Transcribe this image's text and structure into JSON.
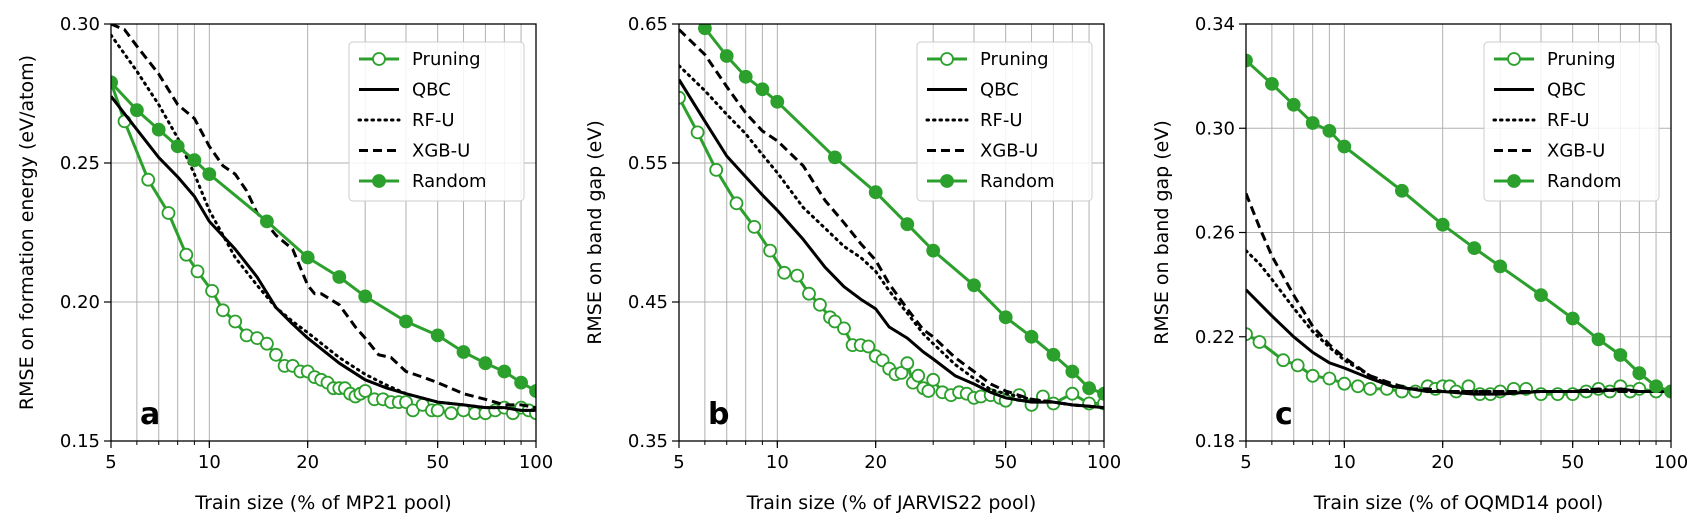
{
  "figure": {
    "colors": {
      "green": "#2ca02c",
      "black": "#000000",
      "grid": "#b0b0b0"
    }
  },
  "chart_data": [
    {
      "type": "line",
      "panel": "a",
      "xlabel": "Train size (% of MP21 pool)",
      "ylabel": "RMSE on formation energy (eV/atom)",
      "xscale": "log",
      "xlim": [
        5,
        100
      ],
      "ylim": [
        0.15,
        0.3
      ],
      "xticks": [
        5,
        10,
        20,
        50,
        100
      ],
      "xtick_labels": [
        "5",
        "10",
        "20",
        "50",
        "100"
      ],
      "yticks": [
        0.15,
        0.2,
        0.25,
        0.3
      ],
      "ytick_labels": [
        "0.15",
        "0.20",
        "0.25",
        "0.30"
      ],
      "grid": true,
      "legend_position": "top-right",
      "series": [
        {
          "name": "Pruning",
          "color": "#2ca02c",
          "style": "solid",
          "marker": "open-circle",
          "x": [
            5,
            5.5,
            6.5,
            7.5,
            8.5,
            9.2,
            10.2,
            11,
            12,
            13,
            14,
            15,
            16,
            17,
            18,
            19,
            20,
            21,
            22,
            23,
            24,
            25,
            26,
            27,
            28,
            29,
            30,
            32,
            34,
            36,
            38,
            40,
            42,
            45,
            48,
            50,
            55,
            60,
            65,
            70,
            75,
            80,
            85,
            90,
            95,
            100
          ],
          "y": [
            0.279,
            0.265,
            0.244,
            0.232,
            0.217,
            0.211,
            0.204,
            0.197,
            0.193,
            0.188,
            0.187,
            0.185,
            0.181,
            0.177,
            0.177,
            0.175,
            0.175,
            0.173,
            0.172,
            0.171,
            0.169,
            0.169,
            0.169,
            0.167,
            0.166,
            0.167,
            0.168,
            0.165,
            0.165,
            0.164,
            0.164,
            0.164,
            0.161,
            0.163,
            0.161,
            0.161,
            0.16,
            0.161,
            0.16,
            0.16,
            0.161,
            0.162,
            0.16,
            0.162,
            0.161,
            0.16
          ]
        },
        {
          "name": "QBC",
          "color": "#000000",
          "style": "solid",
          "marker": "none",
          "x": [
            5,
            6,
            7,
            8,
            9,
            10,
            12,
            14,
            16,
            18,
            20,
            25,
            30,
            35,
            40,
            50,
            60,
            70,
            80,
            90,
            100
          ],
          "y": [
            0.274,
            0.262,
            0.252,
            0.245,
            0.238,
            0.229,
            0.219,
            0.209,
            0.198,
            0.192,
            0.187,
            0.178,
            0.172,
            0.169,
            0.167,
            0.164,
            0.163,
            0.162,
            0.162,
            0.161,
            0.161
          ]
        },
        {
          "name": "RF-U",
          "color": "#000000",
          "style": "dotted",
          "marker": "none",
          "x": [
            5,
            6,
            7,
            8,
            9,
            10,
            12,
            14,
            16,
            18,
            20,
            25,
            30,
            35,
            40,
            50,
            60,
            70,
            80,
            90,
            100
          ],
          "y": [
            0.296,
            0.283,
            0.271,
            0.259,
            0.246,
            0.233,
            0.216,
            0.206,
            0.198,
            0.193,
            0.189,
            0.18,
            0.174,
            0.17,
            0.167,
            0.164,
            0.163,
            0.162,
            0.162,
            0.161,
            0.161
          ]
        },
        {
          "name": "XGB-U",
          "color": "#000000",
          "style": "dashed",
          "marker": "none",
          "x": [
            5,
            5.5,
            6,
            7,
            8,
            9,
            10,
            11,
            12,
            13,
            14,
            15,
            16,
            18,
            20,
            21,
            22,
            25,
            28,
            30,
            33,
            36,
            40,
            45,
            50,
            60,
            70,
            80,
            90,
            100
          ],
          "y": [
            0.3,
            0.298,
            0.292,
            0.282,
            0.271,
            0.266,
            0.256,
            0.249,
            0.246,
            0.24,
            0.232,
            0.228,
            0.224,
            0.219,
            0.206,
            0.203,
            0.203,
            0.199,
            0.191,
            0.187,
            0.181,
            0.18,
            0.175,
            0.173,
            0.171,
            0.167,
            0.165,
            0.163,
            0.163,
            0.162
          ]
        },
        {
          "name": "Random",
          "color": "#2ca02c",
          "style": "solid",
          "marker": "filled-circle",
          "x": [
            5,
            6,
            7,
            8,
            9,
            10,
            15,
            20,
            25,
            30,
            40,
            50,
            60,
            70,
            80,
            90,
            100
          ],
          "y": [
            0.279,
            0.269,
            0.262,
            0.256,
            0.251,
            0.246,
            0.229,
            0.216,
            0.209,
            0.202,
            0.193,
            0.188,
            0.182,
            0.178,
            0.175,
            0.171,
            0.168
          ]
        }
      ]
    },
    {
      "type": "line",
      "panel": "b",
      "xlabel": "Train size (% of JARVIS22 pool)",
      "ylabel": "RMSE on band gap (eV)",
      "xscale": "log",
      "xlim": [
        5,
        100
      ],
      "ylim": [
        0.35,
        0.65
      ],
      "xticks": [
        5,
        10,
        20,
        50,
        100
      ],
      "xtick_labels": [
        "5",
        "10",
        "20",
        "50",
        "100"
      ],
      "yticks": [
        0.35,
        0.45,
        0.55,
        0.65
      ],
      "ytick_labels": [
        "0.35",
        "0.45",
        "0.55",
        "0.65"
      ],
      "grid": true,
      "legend_position": "top-right",
      "series": [
        {
          "name": "Pruning",
          "color": "#2ca02c",
          "style": "solid",
          "marker": "open-circle",
          "x": [
            5,
            5.7,
            6.5,
            7.5,
            8.5,
            9.5,
            10.5,
            11.5,
            12.5,
            13.5,
            14.5,
            15,
            16,
            17,
            18,
            19,
            20,
            21,
            22,
            23,
            24,
            25,
            26,
            27,
            28,
            29,
            30,
            32,
            34,
            36,
            38,
            40,
            42,
            45,
            48,
            50,
            55,
            60,
            65,
            70,
            80,
            90,
            100
          ],
          "y": [
            0.597,
            0.572,
            0.545,
            0.521,
            0.504,
            0.487,
            0.471,
            0.469,
            0.456,
            0.448,
            0.439,
            0.436,
            0.431,
            0.419,
            0.419,
            0.418,
            0.411,
            0.408,
            0.402,
            0.398,
            0.399,
            0.406,
            0.392,
            0.397,
            0.388,
            0.386,
            0.394,
            0.385,
            0.383,
            0.385,
            0.384,
            0.381,
            0.382,
            0.383,
            0.381,
            0.379,
            0.383,
            0.376,
            0.382,
            0.377,
            0.384,
            0.377,
            0.377
          ]
        },
        {
          "name": "QBC",
          "color": "#000000",
          "style": "solid",
          "marker": "none",
          "x": [
            5,
            6,
            7,
            8,
            9,
            10,
            12,
            14,
            16,
            18,
            20,
            22,
            25,
            28,
            30,
            35,
            40,
            45,
            50,
            60,
            70,
            80,
            90,
            100
          ],
          "y": [
            0.61,
            0.58,
            0.555,
            0.54,
            0.527,
            0.516,
            0.495,
            0.475,
            0.461,
            0.452,
            0.445,
            0.432,
            0.424,
            0.414,
            0.409,
            0.397,
            0.391,
            0.385,
            0.381,
            0.378,
            0.378,
            0.376,
            0.375,
            0.374
          ]
        },
        {
          "name": "RF-U",
          "color": "#000000",
          "style": "dotted",
          "marker": "none",
          "x": [
            5,
            6,
            7,
            8,
            9,
            10,
            12,
            14,
            16,
            18,
            20,
            22,
            25,
            28,
            30,
            35,
            40,
            45,
            50,
            60,
            70,
            80,
            90,
            100
          ],
          "y": [
            0.62,
            0.602,
            0.585,
            0.571,
            0.556,
            0.543,
            0.518,
            0.503,
            0.49,
            0.482,
            0.472,
            0.458,
            0.442,
            0.427,
            0.42,
            0.405,
            0.395,
            0.387,
            0.384,
            0.38,
            0.378,
            0.376,
            0.375,
            0.374
          ]
        },
        {
          "name": "XGB-U",
          "color": "#000000",
          "style": "dashed",
          "marker": "none",
          "x": [
            5,
            6,
            7,
            8,
            9,
            10,
            12,
            14,
            16,
            18,
            20,
            22,
            25,
            28,
            30,
            35,
            40,
            45,
            50,
            60,
            70,
            80,
            90,
            100
          ],
          "y": [
            0.646,
            0.628,
            0.605,
            0.586,
            0.573,
            0.566,
            0.548,
            0.523,
            0.507,
            0.492,
            0.48,
            0.463,
            0.445,
            0.43,
            0.425,
            0.41,
            0.4,
            0.391,
            0.386,
            0.38,
            0.378,
            0.376,
            0.375,
            0.374
          ]
        },
        {
          "name": "Random",
          "color": "#2ca02c",
          "style": "solid",
          "marker": "filled-circle",
          "x": [
            5,
            6,
            7,
            8,
            9,
            10,
            15,
            20,
            25,
            30,
            40,
            50,
            60,
            70,
            80,
            90,
            100
          ],
          "y": [
            0.672,
            0.647,
            0.627,
            0.612,
            0.603,
            0.594,
            0.554,
            0.529,
            0.506,
            0.487,
            0.462,
            0.439,
            0.425,
            0.412,
            0.4,
            0.388,
            0.384
          ]
        }
      ]
    },
    {
      "type": "line",
      "panel": "c",
      "xlabel": "Train size (% of OQMD14 pool)",
      "ylabel": "RMSE on band gap (eV)",
      "xscale": "log",
      "xlim": [
        5,
        100
      ],
      "ylim": [
        0.18,
        0.34
      ],
      "xticks": [
        5,
        10,
        20,
        50,
        100
      ],
      "xtick_labels": [
        "5",
        "10",
        "20",
        "50",
        "100"
      ],
      "yticks": [
        0.18,
        0.22,
        0.26,
        0.3,
        0.34
      ],
      "ytick_labels": [
        "0.18",
        "0.22",
        "0.26",
        "0.30",
        "0.34"
      ],
      "grid": true,
      "legend_position": "top-right",
      "series": [
        {
          "name": "Pruning",
          "color": "#2ca02c",
          "style": "solid",
          "marker": "open-circle",
          "x": [
            5,
            5.5,
            6.5,
            7.2,
            8,
            9,
            10,
            11,
            12,
            13.5,
            15,
            16.5,
            18,
            19,
            20,
            21,
            22,
            24,
            26,
            28,
            30,
            33,
            36,
            40,
            45,
            50,
            55,
            60,
            65,
            70,
            75,
            80,
            90,
            100
          ],
          "y": [
            0.221,
            0.218,
            0.211,
            0.209,
            0.205,
            0.204,
            0.202,
            0.201,
            0.2,
            0.2,
            0.199,
            0.199,
            0.201,
            0.2,
            0.201,
            0.201,
            0.199,
            0.201,
            0.198,
            0.198,
            0.199,
            0.2,
            0.2,
            0.198,
            0.198,
            0.198,
            0.199,
            0.2,
            0.199,
            0.201,
            0.199,
            0.2,
            0.199,
            0.199
          ]
        },
        {
          "name": "QBC",
          "color": "#000000",
          "style": "solid",
          "marker": "none",
          "x": [
            5,
            6,
            7,
            8,
            9,
            10,
            12,
            14,
            16,
            18,
            20,
            25,
            30,
            40,
            50,
            60,
            70,
            80,
            90,
            100
          ],
          "y": [
            0.238,
            0.228,
            0.22,
            0.214,
            0.21,
            0.208,
            0.204,
            0.201,
            0.2,
            0.199,
            0.199,
            0.198,
            0.198,
            0.199,
            0.199,
            0.199,
            0.2,
            0.199,
            0.199,
            0.199
          ]
        },
        {
          "name": "RF-U",
          "color": "#000000",
          "style": "dotted",
          "marker": "none",
          "x": [
            5,
            5.5,
            6,
            7,
            8,
            9,
            10,
            12,
            14,
            16,
            18,
            20,
            25,
            30,
            40,
            50,
            60,
            70,
            80,
            90,
            100
          ],
          "y": [
            0.253,
            0.248,
            0.242,
            0.231,
            0.222,
            0.216,
            0.211,
            0.205,
            0.201,
            0.2,
            0.199,
            0.199,
            0.199,
            0.199,
            0.199,
            0.199,
            0.2,
            0.199,
            0.199,
            0.199,
            0.199
          ]
        },
        {
          "name": "XGB-U",
          "color": "#000000",
          "style": "dashed",
          "marker": "none",
          "x": [
            5,
            5.5,
            6,
            7,
            8,
            9,
            10,
            12,
            14,
            16,
            18,
            20,
            25,
            30,
            40,
            50,
            60,
            70,
            80,
            90,
            100
          ],
          "y": [
            0.275,
            0.262,
            0.251,
            0.236,
            0.224,
            0.217,
            0.212,
            0.205,
            0.202,
            0.2,
            0.2,
            0.199,
            0.199,
            0.199,
            0.199,
            0.199,
            0.2,
            0.199,
            0.199,
            0.199,
            0.199
          ]
        },
        {
          "name": "Random",
          "color": "#2ca02c",
          "style": "solid",
          "marker": "filled-circle",
          "x": [
            5,
            6,
            7,
            8,
            9,
            10,
            15,
            20,
            25,
            30,
            40,
            50,
            60,
            70,
            80,
            90,
            100
          ],
          "y": [
            0.326,
            0.317,
            0.309,
            0.302,
            0.299,
            0.293,
            0.276,
            0.263,
            0.254,
            0.247,
            0.236,
            0.227,
            0.219,
            0.213,
            0.206,
            0.201,
            0.199
          ]
        }
      ]
    }
  ]
}
